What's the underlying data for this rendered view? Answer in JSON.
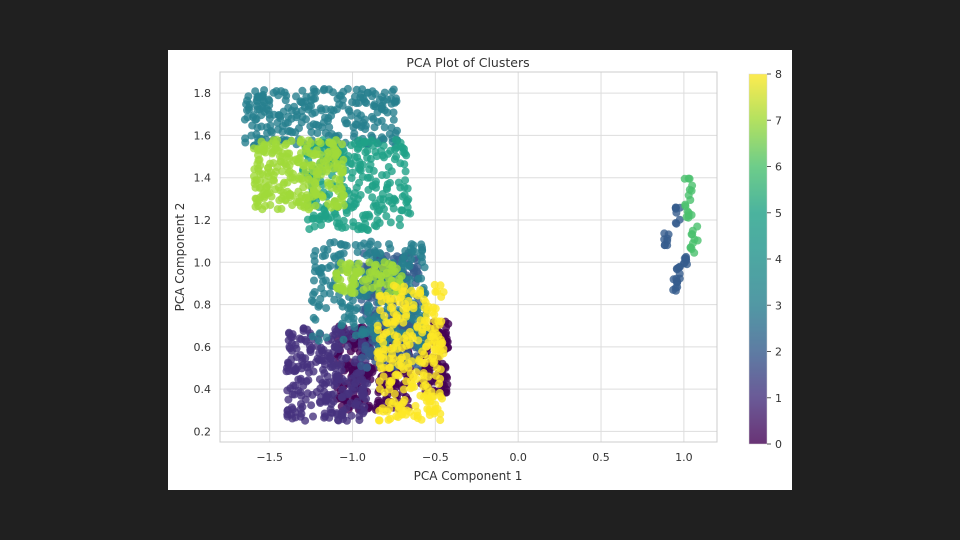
{
  "chart_data": {
    "type": "scatter",
    "title": "PCA Plot of Clusters",
    "xlabel": "PCA Component 1",
    "ylabel": "PCA Component 2",
    "xlim": [
      -1.8,
      1.2
    ],
    "ylim": [
      0.15,
      1.9
    ],
    "xticks": [
      -1.5,
      -1.0,
      -0.5,
      0.0,
      0.5,
      1.0
    ],
    "xtick_labels": [
      "−1.5",
      "−1.0",
      "−0.5",
      "0.0",
      "0.5",
      "1.0"
    ],
    "yticks": [
      0.2,
      0.4,
      0.6,
      0.8,
      1.0,
      1.2,
      1.4,
      1.6,
      1.8
    ],
    "ytick_labels": [
      "0.2",
      "0.4",
      "0.6",
      "0.8",
      "1.0",
      "1.2",
      "1.4",
      "1.6",
      "1.8"
    ],
    "grid": true,
    "colormap": "viridis",
    "colorbar": {
      "range": [
        0,
        8
      ],
      "ticks": [
        0,
        1,
        2,
        3,
        4,
        5,
        6,
        7,
        8
      ]
    },
    "point_alpha": 0.8,
    "clusters": [
      {
        "label": 0,
        "color": "#440154",
        "regions": [
          {
            "x": [
              -1.1,
              -0.65
            ],
            "y": [
              0.3,
              0.7
            ]
          },
          {
            "x": [
              -0.6,
              -0.42
            ],
            "y": [
              0.38,
              0.72
            ]
          }
        ]
      },
      {
        "label": 1,
        "color": "#46327e",
        "regions": [
          {
            "x": [
              -1.4,
              -0.9
            ],
            "y": [
              0.25,
              0.7
            ]
          }
        ]
      },
      {
        "label": 2,
        "color": "#365c8d",
        "regions": [
          {
            "x": [
              0.95,
              0.98
            ],
            "y": [
              1.18,
              1.28
            ]
          },
          {
            "x": [
              0.88,
              0.91
            ],
            "y": [
              1.08,
              1.14
            ]
          },
          {
            "x": [
              1.0,
              1.03
            ],
            "y": [
              0.98,
              1.06
            ]
          },
          {
            "x": [
              0.95,
              0.98
            ],
            "y": [
              0.92,
              0.98
            ]
          },
          {
            "x": [
              0.93,
              0.96
            ],
            "y": [
              0.86,
              0.92
            ]
          },
          {
            "x": [
              -0.95,
              -0.6
            ],
            "y": [
              0.5,
              1.05
            ]
          }
        ]
      },
      {
        "label": 3,
        "color": "#277f8e",
        "regions": [
          {
            "x": [
              -1.65,
              -0.72
            ],
            "y": [
              1.55,
              1.82
            ]
          },
          {
            "x": [
              -1.25,
              -0.55
            ],
            "y": [
              0.6,
              1.1
            ]
          }
        ]
      },
      {
        "label": 4,
        "color": "#1fa187",
        "regions": [
          {
            "x": [
              -1.3,
              -0.65
            ],
            "y": [
              1.15,
              1.58
            ]
          }
        ]
      },
      {
        "label": 5,
        "color": "#4ac16d",
        "regions": [
          {
            "x": [
              1.0,
              1.05
            ],
            "y": [
              1.2,
              1.4
            ]
          },
          {
            "x": [
              1.04,
              1.09
            ],
            "y": [
              1.03,
              1.17
            ]
          }
        ]
      },
      {
        "label": 6,
        "color": "#a0da39",
        "regions": [
          {
            "x": [
              -1.6,
              -1.05
            ],
            "y": [
              1.25,
              1.58
            ]
          },
          {
            "x": [
              -1.1,
              -0.7
            ],
            "y": [
              0.85,
              1.0
            ]
          }
        ]
      },
      {
        "label": 7,
        "color": "#fde725",
        "regions": [
          {
            "x": [
              -0.85,
              -0.45
            ],
            "y": [
              0.25,
              0.9
            ]
          }
        ]
      }
    ]
  }
}
